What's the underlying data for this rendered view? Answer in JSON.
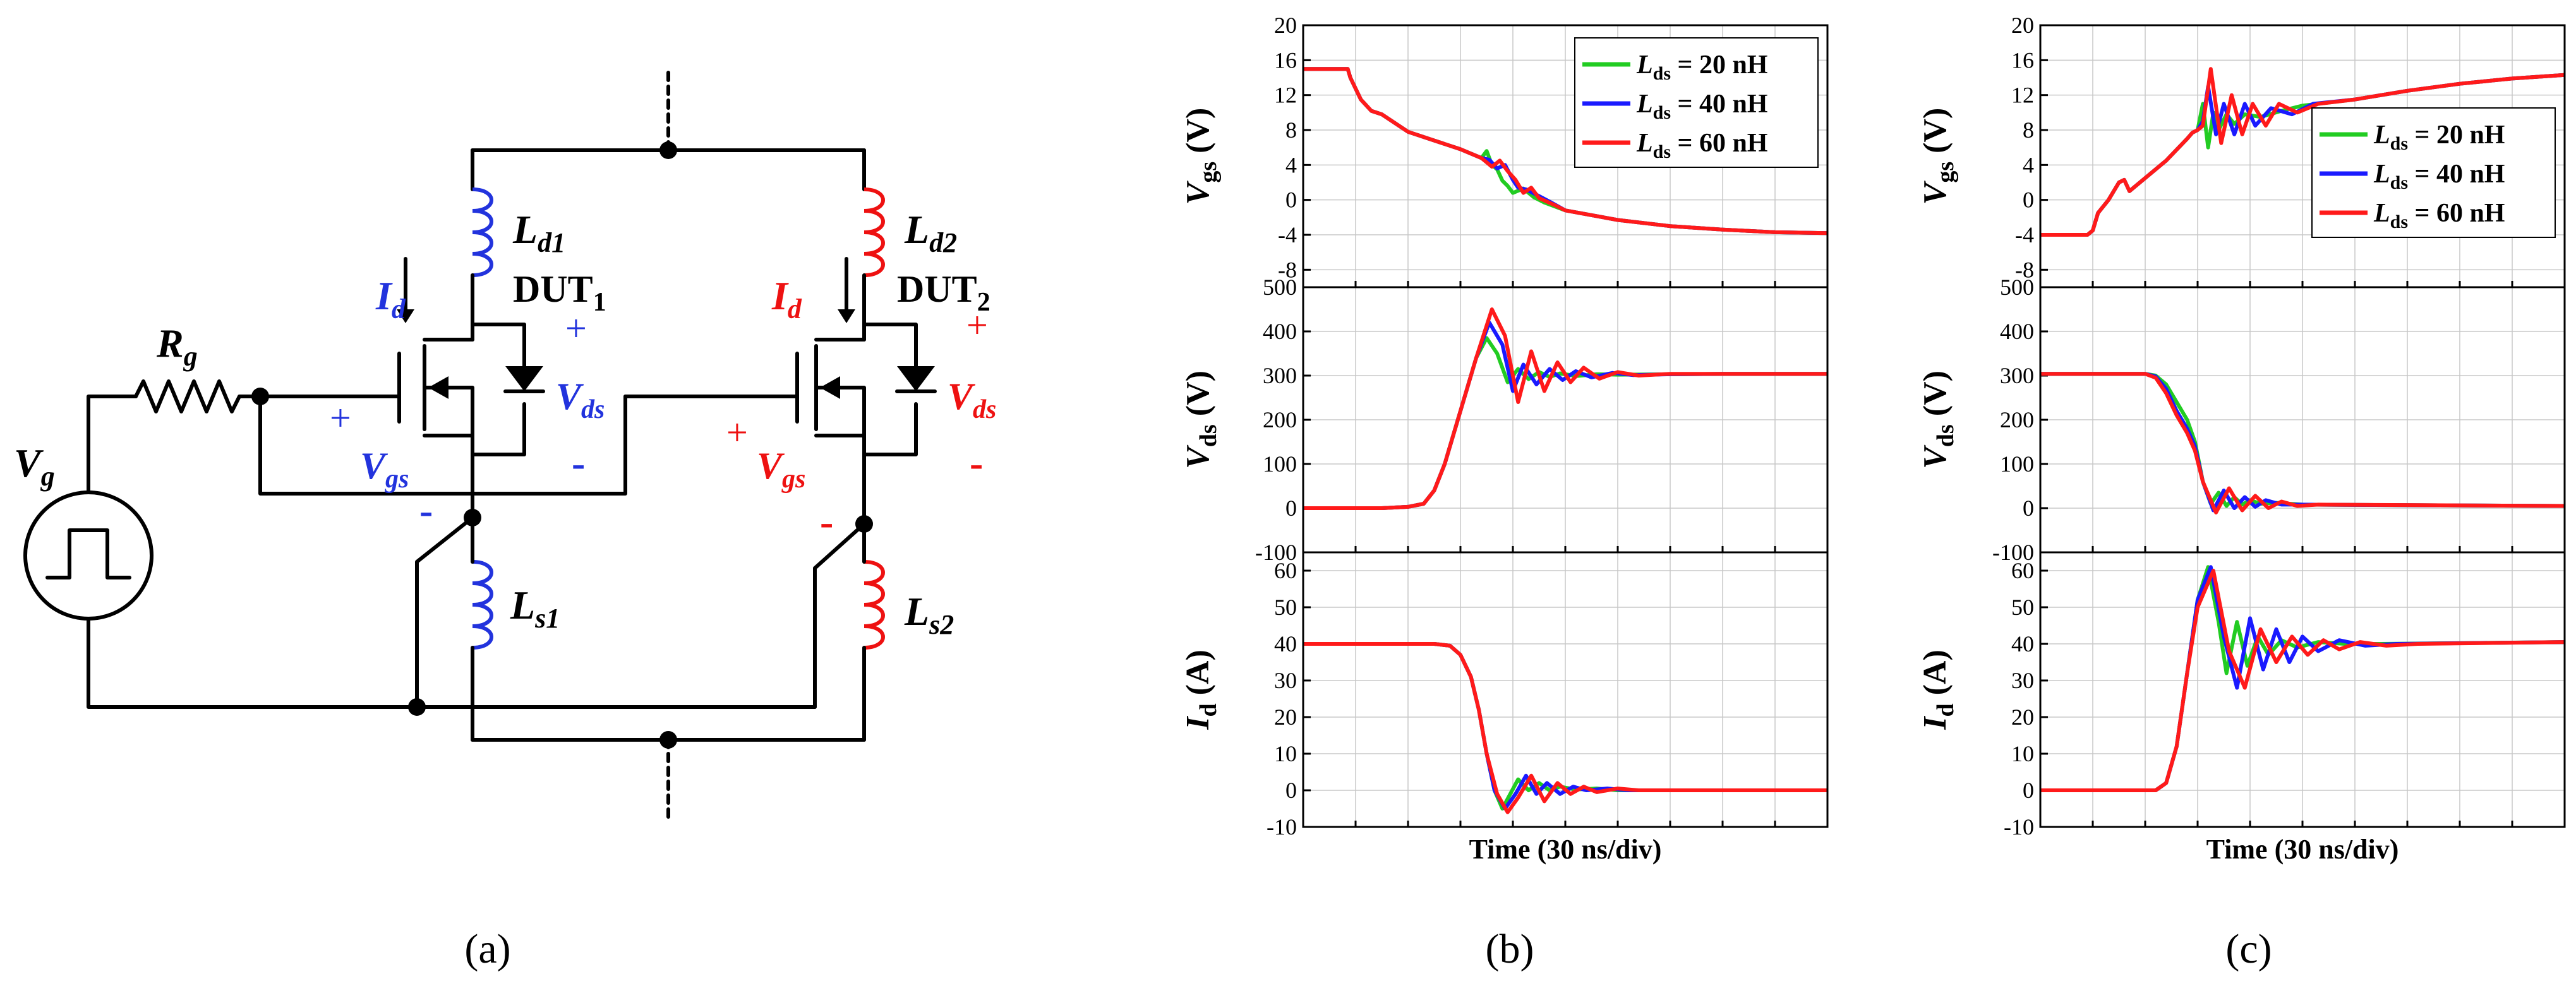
{
  "colors": {
    "green": "#22cc22",
    "blue": "#1a1aff",
    "red": "#ff1a1a",
    "circuit_blue": "#2233dd",
    "circuit_red": "#ee1111"
  },
  "circuit": {
    "vg_label": "V",
    "vg_sub": "g",
    "rg_label": "R",
    "rg_sub": "g",
    "ld1_label": "L",
    "ld1_sub": "d1",
    "ld2_label": "L",
    "ld2_sub": "d2",
    "ls1_label": "L",
    "ls1_sub": "s1",
    "ls2_label": "L",
    "ls2_sub": "s2",
    "dut1_label": "DUT",
    "dut1_sub": "1",
    "dut2_label": "DUT",
    "dut2_sub": "2",
    "id_label": "I",
    "id_sub": "d",
    "vgs_label": "V",
    "vgs_sub": "gs",
    "vds_label": "V",
    "vds_sub": "ds",
    "plus": "+",
    "minus": "-"
  },
  "panel_labels": {
    "a": "(a)",
    "b": "(b)",
    "c": "(c)"
  },
  "chart_data": [
    {
      "type": "line",
      "panel": "b",
      "quantity": "V_gs",
      "ylabel": "V",
      "ylabel_sub": "gs",
      "ylabel_unit": " (V)",
      "ylim": [
        -10,
        20
      ],
      "yticks": [
        -8,
        -4,
        0,
        4,
        8,
        12,
        16,
        20
      ],
      "grid": true,
      "legend": "top-right",
      "xlim": [
        0,
        10
      ],
      "series": [
        {
          "name": "L_ds = 20 nH",
          "x": [
            0,
            0.85,
            0.9,
            1.1,
            1.3,
            1.5,
            2.0,
            2.5,
            3.0,
            3.4,
            3.5,
            3.6,
            3.7,
            3.8,
            3.9,
            4.0,
            4.2,
            4.4,
            4.6,
            5.0,
            6.0,
            7.0,
            8.0,
            9.0,
            10
          ],
          "y": [
            15,
            15,
            14,
            11.5,
            10.2,
            9.8,
            7.8,
            6.8,
            5.8,
            4.8,
            5.6,
            4.0,
            3.5,
            2.2,
            1.6,
            0.8,
            1.3,
            0.3,
            -0.3,
            -1.2,
            -2.3,
            -3.0,
            -3.4,
            -3.7,
            -3.8
          ]
        },
        {
          "name": "L_ds = 40 nH",
          "x": [
            0,
            0.85,
            0.9,
            1.1,
            1.3,
            1.5,
            2.0,
            2.5,
            3.0,
            3.4,
            3.55,
            3.7,
            3.85,
            4.0,
            4.1,
            4.25,
            4.45,
            4.7,
            5.0,
            6.0,
            7.0,
            8.0,
            9.0,
            10
          ],
          "y": [
            15,
            15,
            14,
            11.5,
            10.2,
            9.8,
            7.8,
            6.8,
            5.8,
            4.8,
            4.6,
            3.6,
            4.0,
            2.3,
            1.4,
            1.2,
            0.6,
            -0.2,
            -1.2,
            -2.3,
            -3.0,
            -3.4,
            -3.7,
            -3.8
          ]
        },
        {
          "name": "L_ds = 60 nH",
          "x": [
            0,
            0.85,
            0.9,
            1.1,
            1.3,
            1.5,
            2.0,
            2.5,
            3.0,
            3.4,
            3.6,
            3.75,
            3.9,
            4.05,
            4.2,
            4.35,
            4.5,
            4.8,
            5.0,
            6.0,
            7.0,
            8.0,
            9.0,
            10
          ],
          "y": [
            15,
            15,
            14,
            11.5,
            10.2,
            9.8,
            7.8,
            6.8,
            5.8,
            4.8,
            3.8,
            4.5,
            3.3,
            2.3,
            0.8,
            1.4,
            0.2,
            -0.6,
            -1.2,
            -2.3,
            -3.0,
            -3.4,
            -3.7,
            -3.8
          ]
        }
      ],
      "legend_entries": [
        {
          "label": "L",
          "sub": "ds",
          "rest": " = 20 nH"
        },
        {
          "label": "L",
          "sub": "ds",
          "rest": " = 40 nH"
        },
        {
          "label": "L",
          "sub": "ds",
          "rest": " = 60 nH"
        }
      ]
    },
    {
      "type": "line",
      "panel": "b",
      "quantity": "V_ds",
      "ylabel": "V",
      "ylabel_sub": "ds",
      "ylabel_unit": " (V)",
      "ylim": [
        -100,
        500
      ],
      "yticks": [
        -100,
        0,
        100,
        200,
        300,
        400,
        500
      ],
      "grid": true,
      "xlim": [
        0,
        10
      ],
      "series": [
        {
          "name": "L_ds = 20 nH",
          "x": [
            0,
            1.5,
            2.0,
            2.3,
            2.5,
            2.7,
            2.9,
            3.1,
            3.3,
            3.5,
            3.7,
            3.9,
            4.1,
            4.3,
            4.5,
            4.7,
            4.9,
            5.2,
            5.6,
            6.0,
            7.0,
            8.0,
            10
          ],
          "y": [
            0,
            0,
            3,
            10,
            40,
            100,
            180,
            260,
            340,
            385,
            350,
            285,
            315,
            292,
            308,
            297,
            305,
            299,
            303,
            302,
            303,
            304,
            304
          ]
        },
        {
          "name": "L_ds = 40 nH",
          "x": [
            0,
            1.5,
            2.0,
            2.3,
            2.5,
            2.7,
            2.9,
            3.1,
            3.3,
            3.55,
            3.8,
            4.0,
            4.2,
            4.45,
            4.7,
            4.95,
            5.2,
            5.5,
            5.9,
            6.3,
            7.0,
            8.0,
            10
          ],
          "y": [
            0,
            0,
            3,
            10,
            40,
            100,
            180,
            260,
            340,
            420,
            370,
            265,
            325,
            280,
            315,
            290,
            310,
            296,
            306,
            301,
            303,
            304,
            304
          ]
        },
        {
          "name": "L_ds = 60 nH",
          "x": [
            0,
            1.5,
            2.0,
            2.3,
            2.5,
            2.7,
            2.9,
            3.1,
            3.3,
            3.6,
            3.85,
            4.1,
            4.35,
            4.6,
            4.85,
            5.1,
            5.35,
            5.65,
            6.0,
            6.4,
            7.0,
            8.0,
            10
          ],
          "y": [
            0,
            0,
            3,
            10,
            40,
            100,
            180,
            260,
            340,
            450,
            390,
            240,
            355,
            265,
            330,
            285,
            318,
            293,
            308,
            300,
            304,
            304,
            304
          ]
        }
      ]
    },
    {
      "type": "line",
      "panel": "b",
      "quantity": "I_d",
      "ylabel": "I",
      "ylabel_sub": "d",
      "ylabel_unit": " (A)",
      "ylim": [
        -10,
        65
      ],
      "yticks": [
        -10,
        0,
        10,
        20,
        30,
        40,
        50,
        60
      ],
      "grid": true,
      "xlim": [
        0,
        10
      ],
      "xlabel": "Time (30 ns/div)",
      "series": [
        {
          "name": "L_ds = 20 nH",
          "x": [
            0,
            2.5,
            2.8,
            3.0,
            3.2,
            3.35,
            3.5,
            3.65,
            3.8,
            3.95,
            4.1,
            4.3,
            4.5,
            4.7,
            4.9,
            5.2,
            5.6,
            6.0,
            7.0,
            10
          ],
          "y": [
            40,
            40,
            39.5,
            37,
            31,
            22,
            10,
            0,
            -5,
            -1,
            3,
            0,
            2,
            0,
            1,
            0.2,
            0.5,
            0,
            0,
            0
          ]
        },
        {
          "name": "L_ds = 40 nH",
          "x": [
            0,
            2.5,
            2.8,
            3.0,
            3.2,
            3.35,
            3.5,
            3.65,
            3.85,
            4.05,
            4.25,
            4.45,
            4.65,
            4.9,
            5.15,
            5.4,
            5.8,
            6.2,
            7.0,
            10
          ],
          "y": [
            40,
            40,
            39.5,
            37,
            31,
            22,
            10,
            0,
            -5,
            -1,
            4,
            -1,
            2,
            -1,
            1,
            0,
            0.5,
            0,
            0,
            0
          ]
        },
        {
          "name": "L_ds = 60 nH",
          "x": [
            0,
            2.5,
            2.8,
            3.0,
            3.2,
            3.35,
            3.5,
            3.7,
            3.9,
            4.1,
            4.35,
            4.6,
            4.85,
            5.1,
            5.35,
            5.6,
            6.0,
            6.4,
            7.0,
            10
          ],
          "y": [
            40,
            40,
            39.5,
            37,
            31,
            22,
            10,
            -1,
            -6,
            -2,
            4,
            -3,
            2,
            -1,
            1,
            -0.5,
            0.5,
            0,
            0,
            0
          ]
        }
      ]
    },
    {
      "type": "line",
      "panel": "c",
      "quantity": "V_gs",
      "ylabel": "V",
      "ylabel_sub": "gs",
      "ylabel_unit": " (V)",
      "ylim": [
        -10,
        20
      ],
      "yticks": [
        -8,
        -4,
        0,
        4,
        8,
        12,
        16,
        20
      ],
      "grid": true,
      "legend": "middle-right",
      "xlim": [
        0,
        10
      ],
      "series": [
        {
          "name": "L_ds = 20 nH",
          "x": [
            0,
            0.9,
            1.0,
            1.1,
            1.3,
            1.5,
            1.6,
            1.7,
            2.0,
            2.4,
            2.8,
            2.9,
            3.0,
            3.1,
            3.2,
            3.3,
            3.4,
            3.55,
            3.7,
            3.9,
            4.2,
            4.6,
            5.0,
            6.0,
            7.0,
            8.0,
            9.0,
            10
          ],
          "y": [
            -4,
            -4,
            -3.5,
            -1.5,
            0,
            2,
            2.3,
            1,
            2.5,
            4.5,
            7,
            7.7,
            8,
            11,
            6,
            10,
            8,
            9.8,
            8.7,
            9.8,
            9.5,
            10.2,
            10.8,
            11.5,
            12.5,
            13.3,
            13.9,
            14.3
          ]
        },
        {
          "name": "L_ds = 40 nH",
          "x": [
            0,
            0.9,
            1.0,
            1.1,
            1.3,
            1.5,
            1.6,
            1.7,
            2.0,
            2.4,
            2.8,
            2.9,
            3.0,
            3.1,
            3.2,
            3.35,
            3.5,
            3.7,
            3.9,
            4.1,
            4.4,
            4.8,
            5.2,
            6.0,
            7.0,
            8.0,
            9.0,
            10
          ],
          "y": [
            -4,
            -4,
            -3.5,
            -1.5,
            0,
            2,
            2.3,
            1,
            2.5,
            4.5,
            7,
            7.7,
            8,
            9,
            13,
            7.5,
            11,
            7.5,
            11,
            8.5,
            10.5,
            9.8,
            11,
            11.5,
            12.5,
            13.3,
            13.9,
            14.3
          ]
        },
        {
          "name": "L_ds = 60 nH",
          "x": [
            0,
            0.9,
            1.0,
            1.1,
            1.3,
            1.5,
            1.6,
            1.7,
            2.0,
            2.4,
            2.8,
            2.9,
            3.0,
            3.1,
            3.25,
            3.45,
            3.65,
            3.85,
            4.05,
            4.3,
            4.55,
            4.9,
            5.3,
            6.0,
            7.0,
            8.0,
            9.0,
            10
          ],
          "y": [
            -4,
            -4,
            -3.5,
            -1.5,
            0,
            2,
            2.3,
            1,
            2.5,
            4.5,
            7,
            7.7,
            8,
            8.5,
            15,
            6.5,
            12,
            7.5,
            11,
            8.5,
            11,
            10,
            11,
            11.5,
            12.5,
            13.3,
            13.9,
            14.3
          ]
        }
      ],
      "legend_entries": [
        {
          "label": "L",
          "sub": "ds",
          "rest": " = 20 nH"
        },
        {
          "label": "L",
          "sub": "ds",
          "rest": " = 40 nH"
        },
        {
          "label": "L",
          "sub": "ds",
          "rest": " = 60 nH"
        }
      ]
    },
    {
      "type": "line",
      "panel": "c",
      "quantity": "V_ds",
      "ylabel": "V",
      "ylabel_sub": "ds",
      "ylabel_unit": " (V)",
      "ylim": [
        -100,
        500
      ],
      "yticks": [
        -100,
        0,
        100,
        200,
        300,
        400,
        500
      ],
      "grid": true,
      "xlim": [
        0,
        10
      ],
      "series": [
        {
          "name": "L_ds = 20 nH",
          "x": [
            0,
            2.0,
            2.2,
            2.4,
            2.6,
            2.8,
            2.95,
            3.1,
            3.25,
            3.4,
            3.55,
            3.7,
            3.85,
            4.0,
            4.2,
            4.5,
            5.0,
            10
          ],
          "y": [
            304,
            304,
            300,
            280,
            240,
            200,
            150,
            60,
            10,
            35,
            5,
            25,
            8,
            18,
            10,
            12,
            8,
            5
          ]
        },
        {
          "name": "L_ds = 40 nH",
          "x": [
            0,
            2.0,
            2.2,
            2.4,
            2.6,
            2.8,
            2.95,
            3.1,
            3.3,
            3.5,
            3.7,
            3.9,
            4.1,
            4.3,
            4.6,
            5.0,
            10
          ],
          "y": [
            304,
            304,
            298,
            270,
            220,
            180,
            140,
            60,
            -5,
            40,
            0,
            25,
            3,
            18,
            8,
            8,
            5
          ]
        },
        {
          "name": "L_ds = 60 nH",
          "x": [
            0,
            2.0,
            2.2,
            2.4,
            2.6,
            2.8,
            2.95,
            3.1,
            3.35,
            3.6,
            3.85,
            4.1,
            4.35,
            4.6,
            4.9,
            5.3,
            10
          ],
          "y": [
            304,
            304,
            295,
            260,
            210,
            170,
            130,
            60,
            -10,
            45,
            -5,
            28,
            0,
            15,
            5,
            8,
            5
          ]
        }
      ]
    },
    {
      "type": "line",
      "panel": "c",
      "quantity": "I_d",
      "ylabel": "I",
      "ylabel_sub": "d",
      "ylabel_unit": " (A)",
      "ylim": [
        -10,
        65
      ],
      "yticks": [
        -10,
        0,
        10,
        20,
        30,
        40,
        50,
        60
      ],
      "grid": true,
      "xlim": [
        0,
        10
      ],
      "xlabel": "Time (30 ns/div)",
      "series": [
        {
          "name": "L_ds = 20 nH",
          "x": [
            0,
            2.2,
            2.4,
            2.6,
            2.8,
            3.0,
            3.2,
            3.4,
            3.55,
            3.75,
            3.95,
            4.15,
            4.35,
            4.6,
            4.9,
            5.3,
            5.8,
            6.5,
            10
          ],
          "y": [
            0,
            0,
            2,
            12,
            32,
            52,
            61,
            46,
            32,
            46,
            34,
            42,
            37,
            41,
            39,
            40.5,
            40,
            40,
            40.5
          ]
        },
        {
          "name": "L_ds = 40 nH",
          "x": [
            0,
            2.2,
            2.4,
            2.6,
            2.8,
            3.0,
            3.25,
            3.5,
            3.75,
            4.0,
            4.25,
            4.5,
            4.75,
            5.0,
            5.3,
            5.7,
            6.2,
            6.8,
            10
          ],
          "y": [
            0,
            0,
            2,
            12,
            32,
            52,
            61,
            42,
            28,
            47,
            33,
            44,
            35,
            42,
            38,
            41,
            39.5,
            40,
            40.5
          ]
        },
        {
          "name": "L_ds = 60 nH",
          "x": [
            0,
            2.2,
            2.4,
            2.6,
            2.8,
            3.0,
            3.3,
            3.6,
            3.9,
            4.2,
            4.5,
            4.8,
            5.1,
            5.4,
            5.7,
            6.1,
            6.6,
            7.2,
            10
          ],
          "y": [
            0,
            0,
            2,
            12,
            32,
            50,
            60,
            38,
            28,
            44,
            35,
            42,
            37,
            41,
            38.5,
            40.5,
            39.5,
            40,
            40.5
          ]
        }
      ]
    }
  ]
}
